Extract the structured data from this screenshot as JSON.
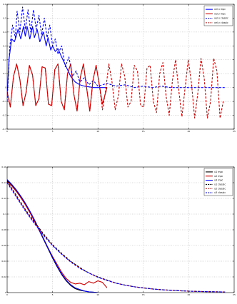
{
  "chart_data": [
    {
      "type": "line",
      "title": "",
      "xlabel": "",
      "ylabel": "",
      "xlim": [
        0,
        25
      ],
      "ylim": [
        -0.3,
        0.6
      ],
      "xticks": [
        "0",
        "5",
        "10",
        "15",
        "20",
        "25"
      ],
      "yticks": [
        "-0.3",
        "-0.2",
        "-0.1",
        "0",
        "0.1",
        "0.2",
        "0.3",
        "0.4",
        "0.5",
        "0.6"
      ],
      "grid": true,
      "legend_position": "top-right",
      "series": [
        {
          "name": "vel x mpc",
          "color": "#0000ff",
          "style": "solid",
          "x": [
            0,
            0.2,
            0.5,
            0.8,
            1.0,
            1.2,
            1.5,
            1.8,
            2.0,
            2.2,
            2.5,
            2.8,
            3.0,
            3.3,
            3.6,
            4.0,
            4.3,
            4.5,
            4.8,
            5.0,
            5.3,
            5.6,
            6.0,
            6.5,
            7.0,
            7.5,
            8.0,
            8.5,
            9.0,
            9.5,
            10.0,
            10.5,
            11.0
          ],
          "y": [
            -0.05,
            0.2,
            0.35,
            0.33,
            0.37,
            0.42,
            0.35,
            0.44,
            0.37,
            0.44,
            0.35,
            0.44,
            0.36,
            0.42,
            0.33,
            0.4,
            0.3,
            0.36,
            0.27,
            0.3,
            0.26,
            0.28,
            0.22,
            0.15,
            0.08,
            0.04,
            0.02,
            0.01,
            0.005,
            0.0,
            0.0,
            0.0,
            0.0
          ]
        },
        {
          "name": "vel y mpc",
          "color": "#cc0000",
          "style": "solid",
          "x": [
            0,
            0.35,
            0.7,
            1.05,
            1.4,
            1.75,
            2.1,
            2.45,
            2.8,
            3.15,
            3.5,
            3.85,
            4.2,
            4.55,
            4.9,
            5.25,
            5.6,
            5.95,
            6.3,
            6.65,
            7.0,
            7.35,
            7.7,
            8.05,
            8.4,
            8.75,
            9.1,
            9.45,
            9.8,
            10.15,
            10.5,
            11.0
          ],
          "y": [
            -0.03,
            -0.14,
            0.08,
            0.17,
            0.06,
            -0.13,
            -0.03,
            0.16,
            0.09,
            -0.13,
            -0.08,
            0.15,
            0.14,
            -0.12,
            -0.13,
            0.13,
            0.17,
            -0.1,
            -0.16,
            0.1,
            0.17,
            -0.05,
            -0.17,
            0.07,
            0.17,
            0.0,
            -0.17,
            0.05,
            0.16,
            0.02,
            -0.12,
            0.0
          ]
        },
        {
          "name": "vel x classic",
          "color": "#0000ff",
          "style": "dashed",
          "x": [
            0,
            0.3,
            0.6,
            0.9,
            1.1,
            1.4,
            1.7,
            2.0,
            2.3,
            2.6,
            2.9,
            3.2,
            3.5,
            3.8,
            4.1,
            4.4,
            4.7,
            5.0,
            5.3,
            5.6,
            6.0,
            6.4,
            6.8,
            7.2,
            7.6,
            8.0,
            8.5,
            9.0,
            9.5,
            10.0,
            11,
            12,
            13,
            14,
            15,
            16,
            17,
            18,
            19,
            20,
            21,
            22,
            23,
            24
          ],
          "y": [
            -0.1,
            0.3,
            0.45,
            0.36,
            0.55,
            0.4,
            0.58,
            0.42,
            0.56,
            0.4,
            0.56,
            0.42,
            0.52,
            0.38,
            0.5,
            0.36,
            0.45,
            0.3,
            0.35,
            0.24,
            0.3,
            0.15,
            0.22,
            0.08,
            0.12,
            0.04,
            0.07,
            0.02,
            0.05,
            0.01,
            0.03,
            0.01,
            0.02,
            0.0,
            0.01,
            0.0,
            0.01,
            0.0,
            0.0,
            0.0,
            0.0,
            0.0,
            0.0,
            0.0
          ]
        },
        {
          "name": "vel y classic",
          "color": "#cc0000",
          "style": "dashed",
          "x": [
            0,
            0.35,
            0.7,
            1.05,
            1.4,
            1.75,
            2.1,
            2.45,
            2.8,
            3.15,
            3.5,
            3.85,
            4.2,
            4.55,
            4.9,
            5.25,
            5.6,
            5.95,
            6.3,
            6.65,
            7.0,
            7.35,
            7.7,
            8.05,
            8.4,
            8.75,
            9.1,
            9.45,
            9.8,
            10.15,
            10.5,
            10.85,
            11.2,
            11.55,
            11.9,
            12.25,
            12.6,
            12.95,
            13.3,
            13.65,
            14.0,
            14.35,
            14.7,
            15.05,
            15.4,
            15.75,
            16.1,
            16.45,
            16.8,
            17.15,
            17.5,
            17.85,
            18.2,
            18.55,
            18.9,
            19.25,
            19.6,
            19.95,
            20.3,
            20.65,
            21.0,
            21.35,
            21.7,
            22.05,
            22.4,
            22.75,
            23.1,
            23.45,
            23.8
          ],
          "y": [
            -0.03,
            -0.14,
            0.08,
            0.17,
            0.06,
            -0.13,
            -0.03,
            0.16,
            0.09,
            -0.13,
            -0.08,
            0.15,
            0.14,
            -0.12,
            -0.13,
            0.13,
            0.17,
            -0.1,
            -0.16,
            0.1,
            0.17,
            -0.05,
            -0.17,
            0.07,
            0.17,
            0.0,
            -0.17,
            0.05,
            0.16,
            0.02,
            -0.16,
            -0.02,
            0.17,
            0.04,
            -0.16,
            -0.06,
            0.17,
            0.08,
            -0.14,
            -0.1,
            0.16,
            0.12,
            -0.13,
            -0.14,
            0.14,
            0.16,
            -0.1,
            -0.18,
            0.1,
            0.18,
            -0.06,
            -0.2,
            0.05,
            0.2,
            -0.02,
            -0.21,
            0.0,
            0.2,
            0.03,
            -0.22,
            -0.04,
            0.21,
            0.07,
            -0.22,
            -0.1,
            0.21,
            0.12,
            -0.22,
            -0.1
          ]
        }
      ]
    },
    {
      "type": "line",
      "title": "",
      "xlabel": "",
      "ylabel": "",
      "xlim": [
        0,
        25
      ],
      "ylim": [
        0,
        0.16
      ],
      "xticks": [
        "0",
        "5",
        "10",
        "15",
        "20",
        "25"
      ],
      "yticks": [
        "0",
        "0.02",
        "0.04",
        "0.06",
        "0.08",
        "0.1",
        "0.12",
        "0.14",
        "0.16"
      ],
      "grid": true,
      "legend_position": "top-right",
      "series": [
        {
          "name": "u1 mpc",
          "color": "#000000",
          "style": "solid",
          "x": [
            0,
            0.5,
            1.0,
            1.5,
            2.0,
            2.5,
            3.0,
            3.5,
            4.0,
            4.5,
            5.0,
            5.5,
            6.0,
            6.5,
            7.0,
            7.5,
            8.0,
            8.5,
            9.0,
            9.5,
            10.0
          ],
          "y": [
            0.143,
            0.137,
            0.13,
            0.122,
            0.113,
            0.103,
            0.092,
            0.08,
            0.068,
            0.056,
            0.044,
            0.033,
            0.023,
            0.015,
            0.009,
            0.005,
            0.003,
            0.002,
            0.001,
            0.0005,
            0.0
          ]
        },
        {
          "name": "u2 mpc",
          "color": "#cc0000",
          "style": "solid",
          "x": [
            0,
            0.5,
            1.0,
            1.5,
            2.0,
            2.5,
            3.0,
            3.5,
            4.0,
            4.5,
            5.0,
            5.5,
            6.0,
            6.5,
            7.0,
            7.5,
            8.0,
            8.5,
            9.0,
            9.5,
            10.0,
            10.5,
            11.0
          ],
          "y": [
            0.142,
            0.136,
            0.129,
            0.121,
            0.112,
            0.102,
            0.091,
            0.08,
            0.069,
            0.057,
            0.046,
            0.036,
            0.026,
            0.018,
            0.013,
            0.011,
            0.012,
            0.01,
            0.014,
            0.012,
            0.015,
            0.013,
            0.006
          ]
        },
        {
          "name": "u3 mpc",
          "color": "#0000ff",
          "style": "solid",
          "x": [
            0,
            0.5,
            1.0,
            1.5,
            2.0,
            2.5,
            3.0,
            3.5,
            4.0,
            4.5,
            5.0,
            5.5,
            6.0,
            6.5,
            7.0,
            7.5,
            8.0,
            8.5,
            9.0,
            9.5,
            10.0
          ],
          "y": [
            0.144,
            0.138,
            0.131,
            0.123,
            0.114,
            0.104,
            0.093,
            0.081,
            0.069,
            0.057,
            0.045,
            0.034,
            0.024,
            0.016,
            0.01,
            0.006,
            0.004,
            0.002,
            0.001,
            0.0005,
            0.0
          ]
        },
        {
          "name": "u1 classic",
          "color": "#000000",
          "style": "dashed",
          "x": [
            0,
            1,
            2,
            3,
            4,
            5,
            6,
            7,
            8,
            9,
            10,
            11,
            12,
            13,
            14,
            15,
            16,
            17,
            18,
            19,
            20,
            21,
            22,
            23,
            24
          ],
          "y": [
            0.142,
            0.124,
            0.106,
            0.09,
            0.075,
            0.061,
            0.05,
            0.04,
            0.032,
            0.025,
            0.02,
            0.016,
            0.012,
            0.0095,
            0.0075,
            0.006,
            0.0047,
            0.0037,
            0.003,
            0.0024,
            0.0019,
            0.0015,
            0.0012,
            0.001,
            0.0008
          ]
        },
        {
          "name": "u2 classic",
          "color": "#cc0000",
          "style": "dashed",
          "x": [
            0,
            1,
            2,
            3,
            4,
            5,
            6,
            7,
            8,
            9,
            10,
            11,
            12,
            13,
            14,
            15,
            16,
            17,
            18,
            19,
            20,
            21,
            22,
            23,
            24
          ],
          "y": [
            0.141,
            0.123,
            0.105,
            0.089,
            0.074,
            0.06,
            0.049,
            0.039,
            0.031,
            0.025,
            0.0195,
            0.0155,
            0.012,
            0.0094,
            0.0074,
            0.0059,
            0.0046,
            0.0036,
            0.0029,
            0.0023,
            0.0018,
            0.0015,
            0.0012,
            0.001,
            0.0008
          ]
        },
        {
          "name": "u3 classic",
          "color": "#0000ff",
          "style": "dashed",
          "x": [
            0,
            1,
            2,
            3,
            4,
            5,
            6,
            7,
            8,
            9,
            10,
            11,
            12,
            13,
            14,
            15,
            16,
            17,
            18,
            19,
            20,
            21,
            22,
            23,
            24
          ],
          "y": [
            0.14,
            0.122,
            0.104,
            0.088,
            0.073,
            0.06,
            0.049,
            0.039,
            0.031,
            0.025,
            0.0195,
            0.0155,
            0.012,
            0.0094,
            0.0074,
            0.0059,
            0.0046,
            0.0036,
            0.0029,
            0.0023,
            0.0018,
            0.0015,
            0.0012,
            0.001,
            0.0008
          ]
        }
      ]
    }
  ]
}
